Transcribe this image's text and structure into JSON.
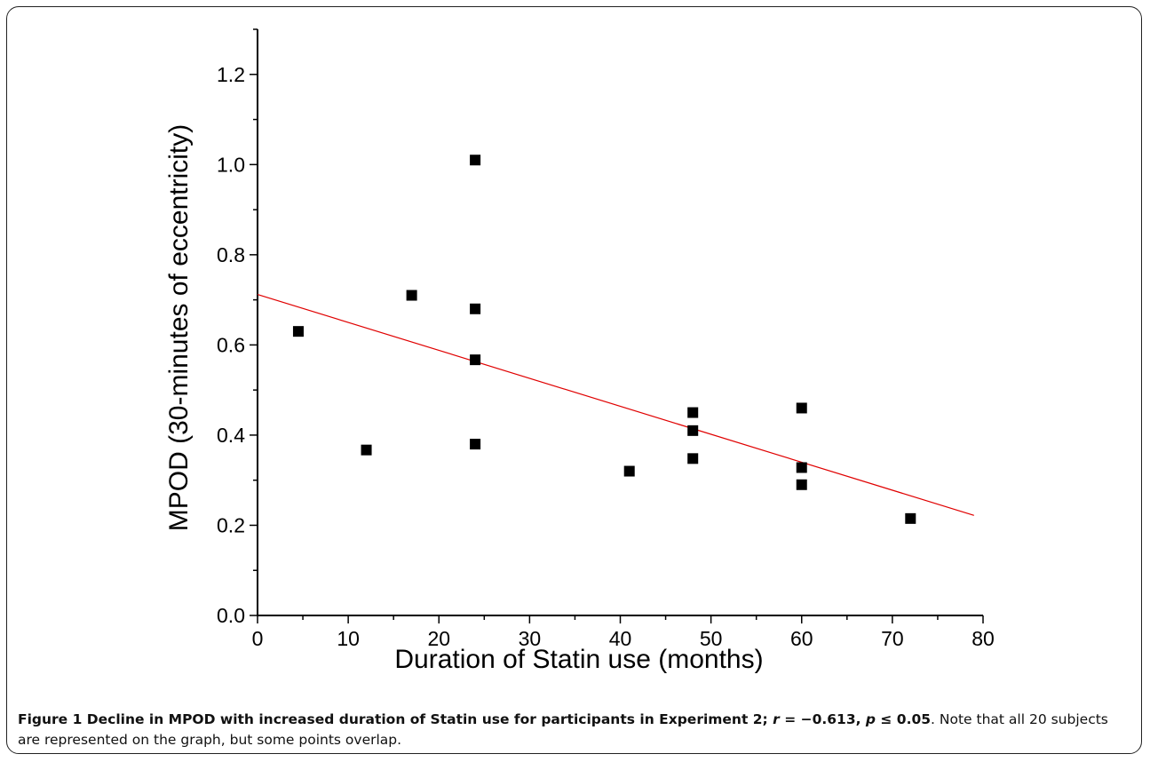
{
  "chart_data": {
    "type": "scatter",
    "xlabel": "Duration of Statin use (months)",
    "ylabel": "MPOD (30-minutes of eccentricity)",
    "xlim": [
      0,
      80
    ],
    "ylim": [
      0,
      1.3
    ],
    "xticks": [
      "0",
      "10",
      "20",
      "30",
      "40",
      "50",
      "60",
      "70",
      "80"
    ],
    "yticks": [
      "0.0",
      "0.2",
      "0.4",
      "0.6",
      "0.8",
      "1.0",
      "1.2"
    ],
    "grid": false,
    "legend": "none",
    "marker_color": "#000000",
    "fit_color": "#e00000",
    "points": [
      {
        "x": 4.5,
        "y": 0.63
      },
      {
        "x": 12,
        "y": 0.367
      },
      {
        "x": 17,
        "y": 0.71
      },
      {
        "x": 24,
        "y": 1.01
      },
      {
        "x": 24,
        "y": 0.68
      },
      {
        "x": 24,
        "y": 0.567
      },
      {
        "x": 24,
        "y": 0.38
      },
      {
        "x": 41,
        "y": 0.32
      },
      {
        "x": 48,
        "y": 0.45
      },
      {
        "x": 48,
        "y": 0.41
      },
      {
        "x": 48,
        "y": 0.348
      },
      {
        "x": 60,
        "y": 0.46
      },
      {
        "x": 60,
        "y": 0.328
      },
      {
        "x": 60,
        "y": 0.29
      },
      {
        "x": 72,
        "y": 0.215
      }
    ],
    "fit_line": {
      "x": [
        0,
        79
      ],
      "y": [
        0.712,
        0.222
      ]
    }
  },
  "caption": {
    "bold": "Figure 1 Decline in MPOD with increased duration of Statin use for participants in Experiment 2; ",
    "r_symbol": "r",
    "r_text": " = −0.613, ",
    "p_symbol": "p",
    "p_text": " ≤ 0.05",
    "rest": ". Note that all 20 subjects are represented on the graph, but some points overlap."
  }
}
